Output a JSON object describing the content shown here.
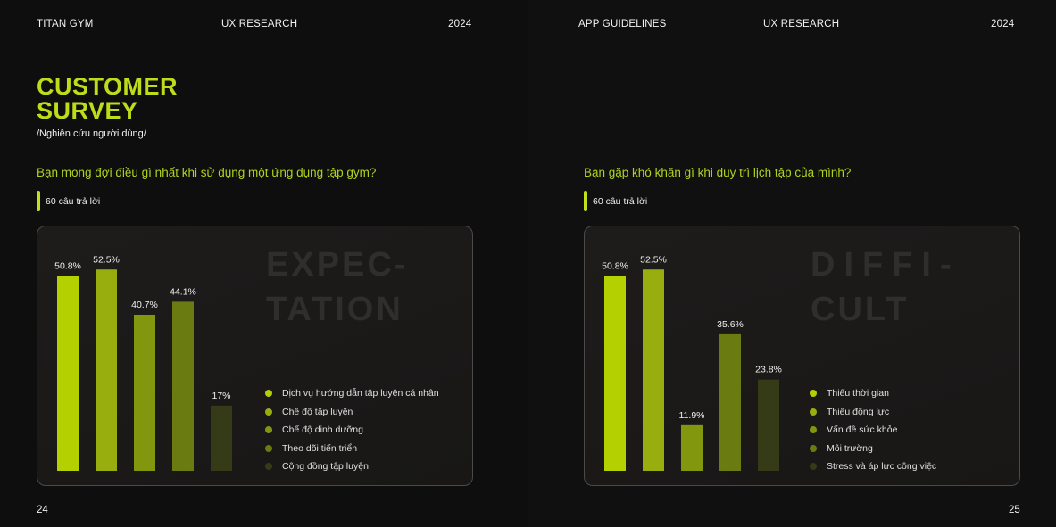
{
  "left_page": {
    "header": {
      "brand": "TITAN GYM",
      "section": "UX RESEARCH",
      "year": "2024"
    },
    "title_line1": "CUSTOMER",
    "title_line2": "SURVEY",
    "subtitle": "/Nghiên cứu người dùng/",
    "question": "Bạn mong đợi điều gì nhất khi sử dụng một ứng dụng tập gym?",
    "responses": "60 câu trả lời",
    "watermark_line1": "EXPEC-",
    "watermark_line2": "TATION",
    "page_number": "24"
  },
  "right_page": {
    "header": {
      "brand": "APP GUIDELINES",
      "section": "UX RESEARCH",
      "year": "2024"
    },
    "question": "Bạn gặp khó khăn gì khi duy trì lịch tập của mình?",
    "responses": "60 câu trả lời",
    "watermark_line1": "DIFFI-",
    "watermark_line2": "CULT",
    "page_number": "25"
  },
  "colors": {
    "background": "#0d0d0d",
    "accent": "#bfdc1a",
    "question": "#aed21f",
    "card_border": "#4a4a4a",
    "watermark": "#2f2e2d"
  },
  "chart_data": [
    {
      "type": "bar",
      "title": "",
      "categories": [
        "Dịch vụ hướng dẫn tập luyện cá nhân",
        "Chế độ tập luyện",
        "Chế độ dinh dưỡng",
        "Theo dõi tiến triển",
        "Cộng đồng tập luyện"
      ],
      "values": [
        50.8,
        52.5,
        40.7,
        44.1,
        17
      ],
      "value_labels": [
        "50.8%",
        "52.5%",
        "40.7%",
        "44.1%",
        "17%"
      ],
      "colors": [
        "#b5d000",
        "#98ae0e",
        "#83970e",
        "#6a7b12",
        "#353b16"
      ],
      "unit": "%",
      "legend_position": "bottom-right",
      "grid": false
    },
    {
      "type": "bar",
      "title": "",
      "categories": [
        "Thiếu thời gian",
        "Thiếu động lực",
        "Vấn đề sức khỏe",
        "Môi trường",
        "Stress và áp lực công việc"
      ],
      "values": [
        50.8,
        52.5,
        11.9,
        35.6,
        23.8
      ],
      "value_labels": [
        "50.8%",
        "52.5%",
        "11.9%",
        "35.6%",
        "23.8%"
      ],
      "colors": [
        "#b5d000",
        "#98ae0e",
        "#83970e",
        "#6a7b12",
        "#353b16"
      ],
      "unit": "%",
      "legend_position": "bottom-right",
      "grid": false
    }
  ]
}
